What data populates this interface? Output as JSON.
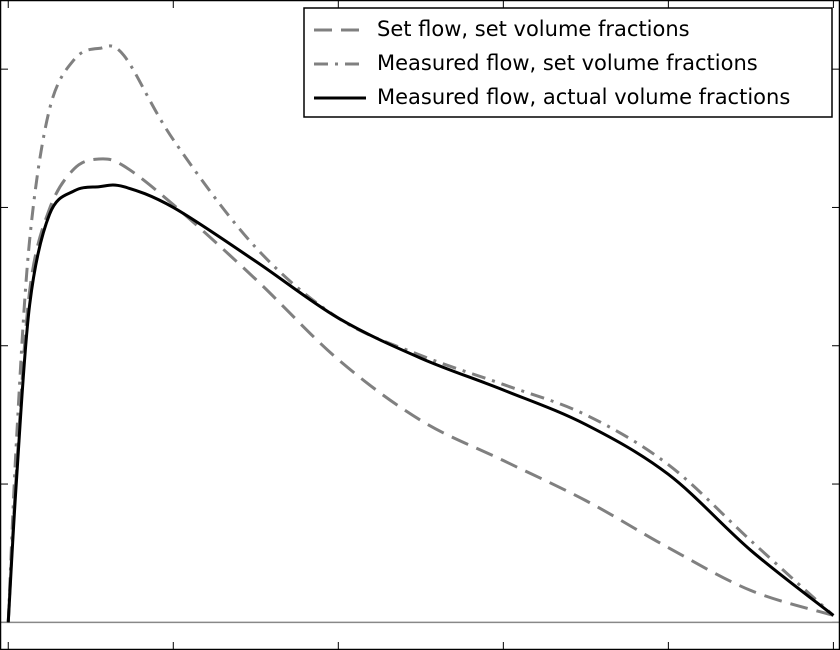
{
  "chart_data": {
    "type": "line",
    "x": [
      0,
      0.05,
      0.13,
      0.25,
      0.4,
      0.55,
      0.7,
      1,
      1.5,
      2,
      2.5,
      3,
      3.5,
      4,
      4.5,
      5
    ],
    "series": [
      {
        "name": "Set flow, set volume fractions",
        "color": "#808080",
        "dash": "dashed",
        "values": [
          0,
          1.1,
          2.4,
          2.99,
          3.28,
          3.35,
          3.3,
          3.02,
          2.48,
          1.9,
          1.46,
          1.17,
          0.88,
          0.54,
          0.23,
          0.05
        ]
      },
      {
        "name": "Measured flow, set volume fractions",
        "color": "#808080",
        "dash": "dashdot",
        "values": [
          0,
          1.32,
          2.77,
          3.71,
          4.07,
          4.15,
          4.1,
          3.49,
          2.71,
          2.2,
          1.93,
          1.72,
          1.5,
          1.14,
          0.59,
          0.05
        ]
      },
      {
        "name": "Measured flow, actual volume fractions",
        "color": "#000000",
        "dash": "solid",
        "values": [
          0,
          1.03,
          2.3,
          2.95,
          3.12,
          3.15,
          3.15,
          3.0,
          2.61,
          2.2,
          1.91,
          1.68,
          1.43,
          1.07,
          0.52,
          0.05
        ]
      }
    ],
    "xlim": [
      -0.05,
      5.04
    ],
    "ylim": [
      -0.2,
      4.5
    ],
    "xticks": [
      0,
      1,
      2,
      3,
      4,
      5
    ],
    "yticks": [
      0,
      1,
      2,
      3,
      4
    ],
    "hline": 0,
    "legend": "upper right"
  }
}
